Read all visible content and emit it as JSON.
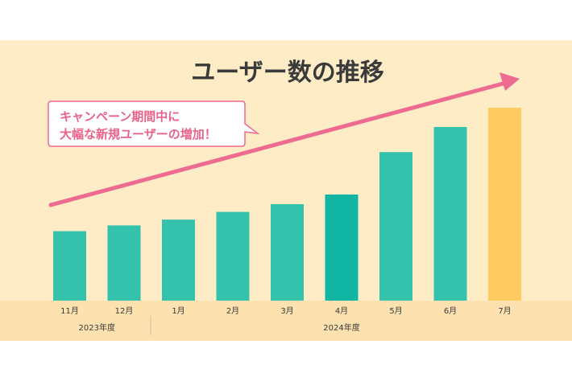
{
  "chart_data": {
    "type": "bar",
    "title": "ユーザー数の推移",
    "categories": [
      "11月",
      "12月",
      "1月",
      "2月",
      "3月",
      "4月",
      "5月",
      "6月",
      "7月"
    ],
    "values": [
      36,
      39,
      42,
      46,
      50,
      55,
      77,
      90,
      100
    ],
    "ylim": [
      0,
      100
    ],
    "grid": false,
    "legend": "none",
    "year_groups": [
      {
        "label": "2023年度",
        "span": [
          0,
          1
        ]
      },
      {
        "label": "2024年度",
        "span": [
          2,
          8
        ]
      }
    ],
    "annotation": {
      "lines": [
        "キャンペーン期間中に",
        "大幅な新規ユーザーの増加！"
      ]
    },
    "colors": {
      "bar": "#35c2ad",
      "bar_emphasis": "#10b5a4",
      "bar_highlight": "#ffca5f",
      "arrow": "#ed6a90",
      "background": "#fdecc6",
      "axis_band": "#fde2b0"
    },
    "emphasis_index": 5,
    "highlight_index": 8
  }
}
